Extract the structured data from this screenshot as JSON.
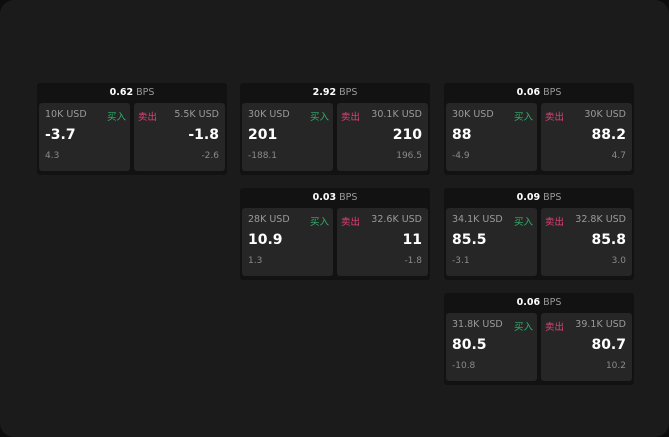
{
  "colors": {
    "buy": "#2fb36b",
    "sell": "#e0407a"
  },
  "labels": {
    "buy": "买入",
    "sell": "卖出",
    "unit": "BPS"
  },
  "panels": [
    {
      "spread": "0.62",
      "bid_size": "10K USD",
      "bid": "-3.7",
      "bid_change": "4.3",
      "ask_size": "5.5K USD",
      "ask": "-1.8",
      "ask_change": "-2.6"
    },
    {
      "spread": "2.92",
      "bid_size": "30K USD",
      "bid": "201",
      "bid_change": "-188.1",
      "ask_size": "30.1K USD",
      "ask": "210",
      "ask_change": "196.5"
    },
    {
      "spread": "0.06",
      "bid_size": "30K USD",
      "bid": "88",
      "bid_change": "-4.9",
      "ask_size": "30K USD",
      "ask": "88.2",
      "ask_change": "4.7"
    },
    {
      "spread": "0.03",
      "bid_size": "28K USD",
      "bid": "10.9",
      "bid_change": "1.3",
      "ask_size": "32.6K USD",
      "ask": "11",
      "ask_change": "-1.8"
    },
    {
      "spread": "0.09",
      "bid_size": "34.1K USD",
      "bid": "85.5",
      "bid_change": "-3.1",
      "ask_size": "32.8K USD",
      "ask": "85.8",
      "ask_change": "3.0"
    },
    {
      "spread": "0.06",
      "bid_size": "31.8K USD",
      "bid": "80.5",
      "bid_change": "-10.8",
      "ask_size": "39.1K USD",
      "ask": "80.7",
      "ask_change": "10.2"
    }
  ]
}
